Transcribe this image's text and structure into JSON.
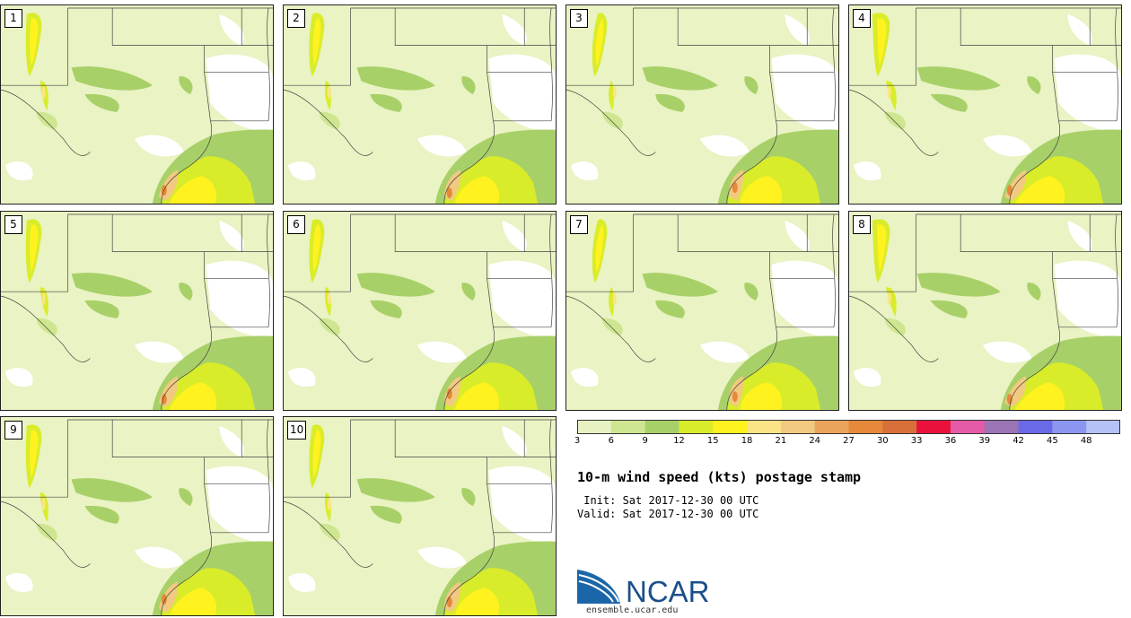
{
  "panels": [
    {
      "label": "1"
    },
    {
      "label": "2"
    },
    {
      "label": "3"
    },
    {
      "label": "4"
    },
    {
      "label": "5"
    },
    {
      "label": "6"
    },
    {
      "label": "7"
    },
    {
      "label": "8"
    },
    {
      "label": "9"
    },
    {
      "label": "10"
    }
  ],
  "colorbar": {
    "colors": [
      "#e6f2c2",
      "#cfe690",
      "#a8d068",
      "#d9ec2a",
      "#fff21e",
      "#fbe486",
      "#f2c980",
      "#eba45c",
      "#e6893a",
      "#d9703a",
      "#e8123c",
      "#e55aa6",
      "#9a74b4",
      "#6a6ae8",
      "#8c96f0",
      "#b4c2f8"
    ],
    "labels": [
      "3",
      "6",
      "9",
      "12",
      "15",
      "18",
      "21",
      "24",
      "27",
      "30",
      "33",
      "36",
      "39",
      "42",
      "45",
      "48"
    ]
  },
  "title": "10-m wind speed (kts) postage stamp",
  "init_line": " Init: Sat 2017-12-30 00 UTC",
  "valid_line": "Valid: Sat 2017-12-30 00 UTC",
  "logo": {
    "text": "NCAR",
    "url": "ensemble.ucar.edu",
    "color": "#1b4f8a"
  }
}
